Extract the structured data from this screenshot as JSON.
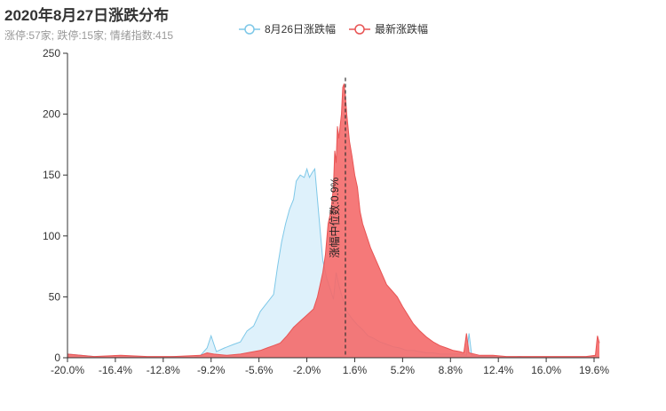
{
  "title": "2020年8月27日涨跌分布",
  "subtitle": "涨停:57家; 跌停:15家; 情绪指数:415",
  "chart_data": {
    "type": "area",
    "x_range": [
      -20.0,
      20.0
    ],
    "ylim": [
      0,
      250
    ],
    "y_ticks": [
      "0",
      "50",
      "100",
      "150",
      "200",
      "250"
    ],
    "x_tick_values": [
      -20.0,
      -16.4,
      -12.8,
      -9.2,
      -5.6,
      -2.0,
      1.6,
      5.2,
      8.8,
      12.4,
      16.0,
      19.6
    ],
    "x_ticks": [
      "-20.0%",
      "-16.4%",
      "-12.8%",
      "-9.2%",
      "-5.6%",
      "-2.0%",
      "1.6%",
      "5.2%",
      "8.8%",
      "12.4%",
      "16.0%",
      "19.6%"
    ],
    "legend_position": "top-center",
    "grid": false,
    "series": [
      {
        "name": "8月26日涨跌幅",
        "color": "#7ec8e8",
        "fill": "#d8effa",
        "points": [
          [
            -20,
            3
          ],
          [
            -17,
            0
          ],
          [
            -15,
            1
          ],
          [
            -13,
            0
          ],
          [
            -12,
            1
          ],
          [
            -10.5,
            0
          ],
          [
            -10,
            2
          ],
          [
            -9.5,
            8
          ],
          [
            -9.2,
            18
          ],
          [
            -8.8,
            5
          ],
          [
            -8.2,
            8
          ],
          [
            -7.5,
            11
          ],
          [
            -7,
            13
          ],
          [
            -6.5,
            22
          ],
          [
            -6,
            26
          ],
          [
            -5.5,
            38
          ],
          [
            -5,
            45
          ],
          [
            -4.5,
            52
          ],
          [
            -4.2,
            75
          ],
          [
            -3.9,
            95
          ],
          [
            -3.6,
            110
          ],
          [
            -3.3,
            122
          ],
          [
            -3,
            130
          ],
          [
            -2.8,
            145
          ],
          [
            -2.5,
            150
          ],
          [
            -2.2,
            148
          ],
          [
            -2,
            155
          ],
          [
            -1.8,
            148
          ],
          [
            -1.6,
            152
          ],
          [
            -1.4,
            155
          ],
          [
            -1.2,
            130
          ],
          [
            -1,
            105
          ],
          [
            -0.8,
            80
          ],
          [
            -0.5,
            65
          ],
          [
            -0.2,
            55
          ],
          [
            0,
            48
          ],
          [
            0.2,
            70
          ],
          [
            0.4,
            60
          ],
          [
            0.6,
            52
          ],
          [
            0.8,
            45
          ],
          [
            1,
            38
          ],
          [
            1.4,
            32
          ],
          [
            1.8,
            27
          ],
          [
            2.2,
            23
          ],
          [
            2.6,
            18
          ],
          [
            3,
            16
          ],
          [
            3.5,
            13
          ],
          [
            4,
            11
          ],
          [
            4.5,
            9
          ],
          [
            5,
            8
          ],
          [
            5.5,
            6
          ],
          [
            6,
            6
          ],
          [
            6.5,
            5
          ],
          [
            7,
            4
          ],
          [
            7.5,
            4
          ],
          [
            8,
            3
          ],
          [
            8.5,
            3
          ],
          [
            9,
            3
          ],
          [
            9.5,
            3
          ],
          [
            10,
            2
          ],
          [
            10.2,
            20
          ],
          [
            10.4,
            2
          ],
          [
            11,
            1
          ],
          [
            12,
            1
          ],
          [
            13,
            0
          ],
          [
            14,
            1
          ],
          [
            15,
            0
          ],
          [
            17,
            0
          ],
          [
            19,
            0
          ],
          [
            20,
            0
          ]
        ]
      },
      {
        "name": "最新涨跌幅",
        "color": "#e85454",
        "fill": "#f46a6a",
        "points": [
          [
            -20,
            3
          ],
          [
            -18,
            1
          ],
          [
            -16,
            2
          ],
          [
            -14,
            1
          ],
          [
            -12,
            1
          ],
          [
            -10,
            2
          ],
          [
            -9.5,
            4
          ],
          [
            -9,
            3
          ],
          [
            -8,
            2
          ],
          [
            -7,
            3
          ],
          [
            -6,
            5
          ],
          [
            -5.5,
            6
          ],
          [
            -5,
            8
          ],
          [
            -4.5,
            10
          ],
          [
            -4,
            12
          ],
          [
            -3.5,
            18
          ],
          [
            -3,
            25
          ],
          [
            -2.5,
            30
          ],
          [
            -2,
            35
          ],
          [
            -1.5,
            40
          ],
          [
            -1.2,
            50
          ],
          [
            -1,
            60
          ],
          [
            -0.8,
            70
          ],
          [
            -0.6,
            85
          ],
          [
            -0.4,
            110
          ],
          [
            -0.2,
            120
          ],
          [
            0,
            140
          ],
          [
            0.1,
            170
          ],
          [
            0.2,
            160
          ],
          [
            0.3,
            190
          ],
          [
            0.4,
            180
          ],
          [
            0.6,
            200
          ],
          [
            0.7,
            222
          ],
          [
            0.8,
            225
          ],
          [
            0.9,
            215
          ],
          [
            1,
            200
          ],
          [
            1.2,
            178
          ],
          [
            1.4,
            165
          ],
          [
            1.6,
            150
          ],
          [
            1.8,
            140
          ],
          [
            2,
            120
          ],
          [
            2.2,
            110
          ],
          [
            2.5,
            100
          ],
          [
            2.8,
            90
          ],
          [
            3.2,
            80
          ],
          [
            3.6,
            70
          ],
          [
            4,
            60
          ],
          [
            4.4,
            55
          ],
          [
            4.8,
            50
          ],
          [
            5.2,
            42
          ],
          [
            5.6,
            35
          ],
          [
            6,
            28
          ],
          [
            6.5,
            22
          ],
          [
            7,
            17
          ],
          [
            7.5,
            13
          ],
          [
            8,
            10
          ],
          [
            8.5,
            8
          ],
          [
            9,
            6
          ],
          [
            9.5,
            5
          ],
          [
            9.8,
            4
          ],
          [
            10,
            20
          ],
          [
            10.2,
            4
          ],
          [
            11,
            2
          ],
          [
            12,
            2
          ],
          [
            13,
            1
          ],
          [
            14,
            1
          ],
          [
            15,
            1
          ],
          [
            16,
            1
          ],
          [
            17,
            1
          ],
          [
            18,
            1
          ],
          [
            19,
            1
          ],
          [
            19.7,
            2
          ],
          [
            19.85,
            18
          ],
          [
            20,
            12
          ]
        ]
      }
    ],
    "annotation": {
      "x": 0.9,
      "label": "涨幅中位数:0.9%"
    }
  }
}
